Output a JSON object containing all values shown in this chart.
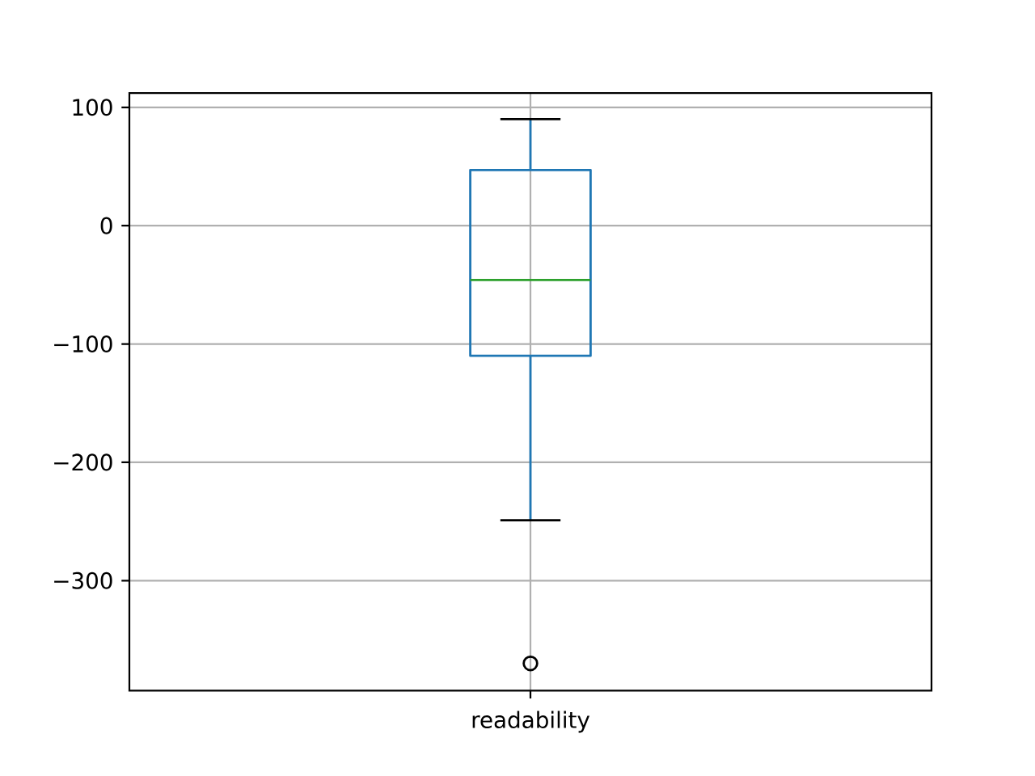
{
  "chart_data": {
    "type": "box",
    "categories": [
      "readability"
    ],
    "color": "#1f77b4",
    "marker": "circle",
    "boxes": [
      {
        "low": -249,
        "q1": -110,
        "median": -46,
        "q3": 47,
        "high": 90,
        "outliers": [
          -370
        ]
      }
    ],
    "ylim": [
      -393,
      112
    ],
    "yticks": [
      {
        "value": -300,
        "label": "−300"
      },
      {
        "value": -200,
        "label": "−200"
      },
      {
        "value": -100,
        "label": "−100"
      },
      0,
      100
    ],
    "grid": true
  }
}
